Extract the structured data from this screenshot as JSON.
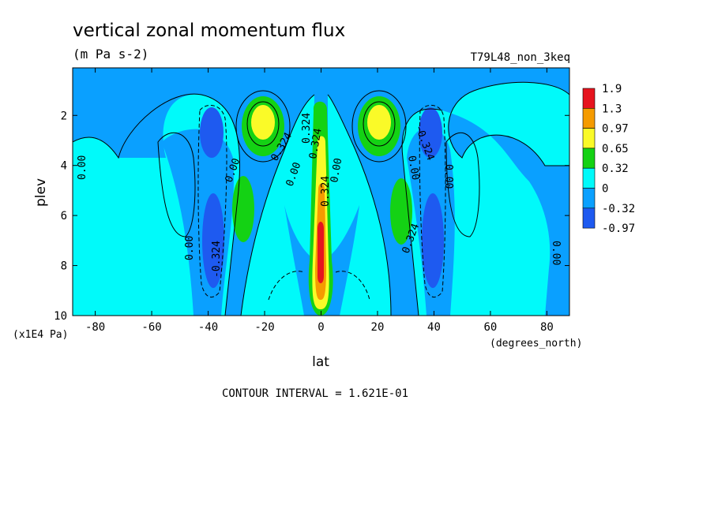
{
  "chart_data": {
    "type": "heatmap",
    "title": "vertical zonal momentum flux",
    "subtitle": "(m Pa s-2)",
    "dataset_label": "T79L48_non_3keq",
    "xlabel": "lat",
    "xunits": "(degrees_north)",
    "ylabel": "plev",
    "yunits": "(x1E4 Pa)",
    "footer": "CONTOUR INTERVAL = 1.621E-01",
    "xlim": [
      -88,
      88
    ],
    "ylim": [
      10,
      0.1
    ],
    "x_ticks": [
      "-80",
      "-60",
      "-40",
      "-20",
      "0",
      "20",
      "40",
      "60",
      "80"
    ],
    "y_ticks": [
      "2",
      "4",
      "6",
      "8",
      "10"
    ],
    "colorbar": {
      "labels": [
        "1.9",
        "1.3",
        "0.97",
        "0.65",
        "0.32",
        "0",
        "-0.32",
        "-0.97"
      ],
      "colors": [
        "#e6141e",
        "#f59b00",
        "#fafa28",
        "#14d214",
        "#00fafa",
        "#0aa0ff",
        "#1e5af0"
      ]
    },
    "contour_labels": [
      "0.00",
      "0.324",
      "-0.324",
      "0.00",
      "0.324",
      "0.00",
      "0.00",
      "0.324",
      "0.00",
      "-0.324",
      "0.00",
      "0.324",
      "0.00",
      "0.00",
      "0.324"
    ]
  }
}
